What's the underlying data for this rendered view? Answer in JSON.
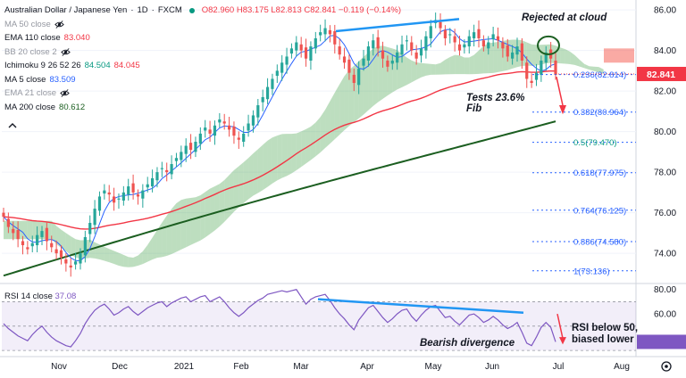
{
  "header": {
    "symbol": "Australian Dollar / Japanese Yen",
    "interval": "1D",
    "exchange": "FXCM",
    "ohlc": "O82.960 H83.175 L82.813 C82.841 −0.119 (−0.14%)"
  },
  "legend": [
    {
      "label": "MA 50 close",
      "muted": true,
      "value": ""
    },
    {
      "label": "EMA 110 close",
      "muted": false,
      "value": "83.040",
      "color": "#f23645"
    },
    {
      "label": "BB 20 close 2",
      "muted": true,
      "value": ""
    },
    {
      "label": "Ichimoku 9 26 52 26",
      "muted": false,
      "value": "84.504",
      "value2": "84.045",
      "color": "#089981",
      "color2": "#f23645"
    },
    {
      "label": "MA 5 close",
      "muted": false,
      "value": "83.509",
      "color": "#2962ff"
    },
    {
      "label": "EMA 21 close",
      "muted": true,
      "value": ""
    },
    {
      "label": "MA 200 close",
      "muted": false,
      "value": "80.612",
      "color": "#1b5e20"
    }
  ],
  "rsi_legend": {
    "label": "RSI 14 close",
    "value": "37.08",
    "color": "#7e57c2"
  },
  "price_badge": "82.841",
  "annotations": {
    "rejected": "Rejected at cloud",
    "tests_line1": "Tests 23.6%",
    "tests_line2": "Fib",
    "bearish": "Bearish divergence",
    "rsi_note_line1": "RSI below 50,",
    "rsi_note_line2": "biased lower"
  },
  "chart_data": {
    "type": "candlestick",
    "title": "Australian Dollar / Japanese Yen · 1D · FXCM",
    "x_ticks": [
      "Nov",
      "Dec",
      "2021",
      "Feb",
      "Mar",
      "Apr",
      "May",
      "Jun",
      "Jul",
      "Aug"
    ],
    "y_ticks": [
      74.0,
      76.0,
      78.0,
      80.0,
      82.0,
      84.0,
      86.0
    ],
    "ylim": [
      72.6,
      86.4
    ],
    "fib_levels": [
      {
        "ratio": "0.236",
        "price": 82.814
      },
      {
        "ratio": "0.382",
        "price": 80.964
      },
      {
        "ratio": "0.5",
        "price": 79.47
      },
      {
        "ratio": "0.618",
        "price": 77.975
      },
      {
        "ratio": "0.764",
        "price": 76.125
      },
      {
        "ratio": "0.886",
        "price": 74.58
      },
      {
        "ratio": "1",
        "price": 73.136
      }
    ],
    "last_close": 82.841,
    "ema110_last": 83.04,
    "ma200_last": 80.612,
    "ma5_last": 83.509,
    "rsi": {
      "ticks": [
        40.0,
        60.0,
        80.0
      ],
      "last": 37.08,
      "ylim": [
        25,
        82
      ]
    },
    "series_close": [
      75.8,
      75.3,
      75.0,
      74.7,
      74.4,
      74.2,
      74.5,
      74.9,
      75.1,
      74.6,
      74.3,
      74.0,
      73.8,
      73.5,
      73.3,
      73.6,
      74.0,
      74.8,
      75.5,
      76.2,
      76.8,
      77.1,
      76.9,
      76.5,
      76.7,
      77.0,
      77.3,
      77.0,
      76.8,
      77.1,
      77.4,
      77.7,
      78.0,
      78.2,
      78.0,
      78.4,
      78.7,
      79.0,
      79.3,
      79.1,
      79.5,
      79.9,
      80.2,
      79.9,
      80.3,
      80.6,
      80.4,
      80.1,
      79.8,
      79.6,
      79.9,
      80.4,
      80.8,
      81.3,
      81.7,
      82.2,
      82.6,
      83.0,
      83.4,
      83.7,
      84.1,
      84.4,
      84.0,
      83.6,
      84.2,
      84.6,
      84.9,
      85.1,
      84.8,
      84.3,
      83.8,
      83.4,
      82.9,
      82.4,
      83.1,
      83.6,
      84.2,
      84.5,
      84.1,
      83.6,
      83.2,
      83.5,
      83.9,
      84.3,
      84.5,
      84.0,
      83.6,
      84.1,
      84.7,
      85.2,
      85.5,
      85.1,
      84.6,
      84.8,
      84.4,
      84.0,
      84.3,
      84.7,
      84.9,
      84.6,
      84.2,
      84.4,
      84.8,
      84.5,
      84.1,
      83.7,
      83.9,
      84.2,
      83.5,
      82.6,
      82.4,
      82.9,
      83.5,
      83.9,
      83.6,
      82.8
    ],
    "rsi_values": [
      52,
      48,
      45,
      42,
      40,
      38,
      43,
      47,
      50,
      45,
      41,
      38,
      36,
      34,
      33,
      38,
      44,
      52,
      58,
      63,
      66,
      68,
      64,
      59,
      61,
      64,
      66,
      62,
      59,
      62,
      65,
      67,
      69,
      70,
      66,
      69,
      71,
      73,
      74,
      70,
      72,
      74,
      75,
      70,
      72,
      74,
      70,
      65,
      61,
      58,
      61,
      65,
      68,
      71,
      73,
      76,
      77,
      78,
      79,
      78,
      79,
      80,
      74,
      68,
      72,
      74,
      75,
      76,
      71,
      65,
      60,
      56,
      51,
      47,
      55,
      60,
      65,
      67,
      62,
      57,
      53,
      56,
      60,
      63,
      64,
      58,
      54,
      59,
      63,
      66,
      67,
      62,
      57,
      58,
      54,
      51,
      55,
      59,
      60,
      57,
      53,
      55,
      58,
      55,
      51,
      48,
      50,
      53,
      45,
      36,
      34,
      41,
      49,
      53,
      49,
      37.08
    ]
  }
}
